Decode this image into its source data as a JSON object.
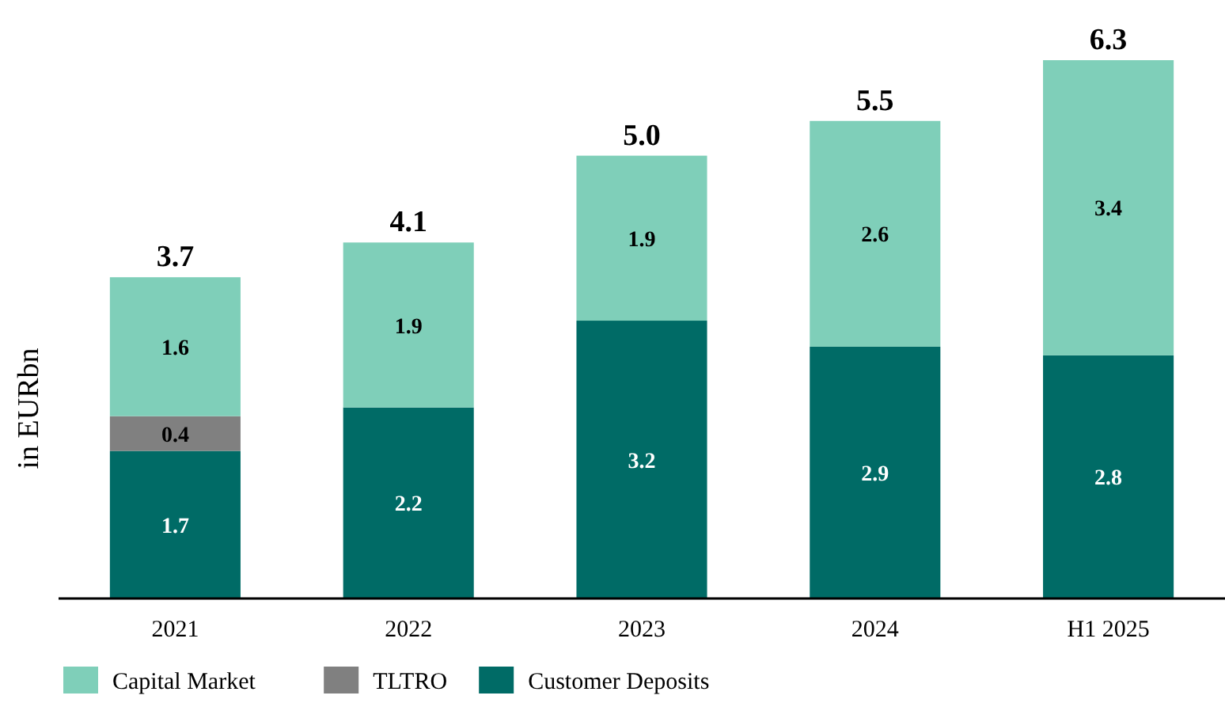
{
  "chart_data": {
    "type": "bar",
    "stacked": true,
    "ylabel": "in EURbn",
    "categories": [
      "2021",
      "2022",
      "2023",
      "2024",
      "H1 2025"
    ],
    "series": [
      {
        "name": "Customer Deposits",
        "color": "#006b66",
        "values": [
          1.7,
          2.2,
          3.2,
          2.9,
          2.8
        ]
      },
      {
        "name": "TLTRO",
        "color": "#808080",
        "values": [
          0.4,
          null,
          null,
          null,
          null
        ]
      },
      {
        "name": "Capital Market",
        "color": "#7fcfb9",
        "values": [
          1.6,
          1.9,
          1.9,
          2.6,
          3.4
        ]
      }
    ],
    "totals": [
      "3.7",
      "4.1",
      "5.0",
      "5.5",
      "6.3"
    ],
    "data_labels": true,
    "legend": "bottom left"
  }
}
